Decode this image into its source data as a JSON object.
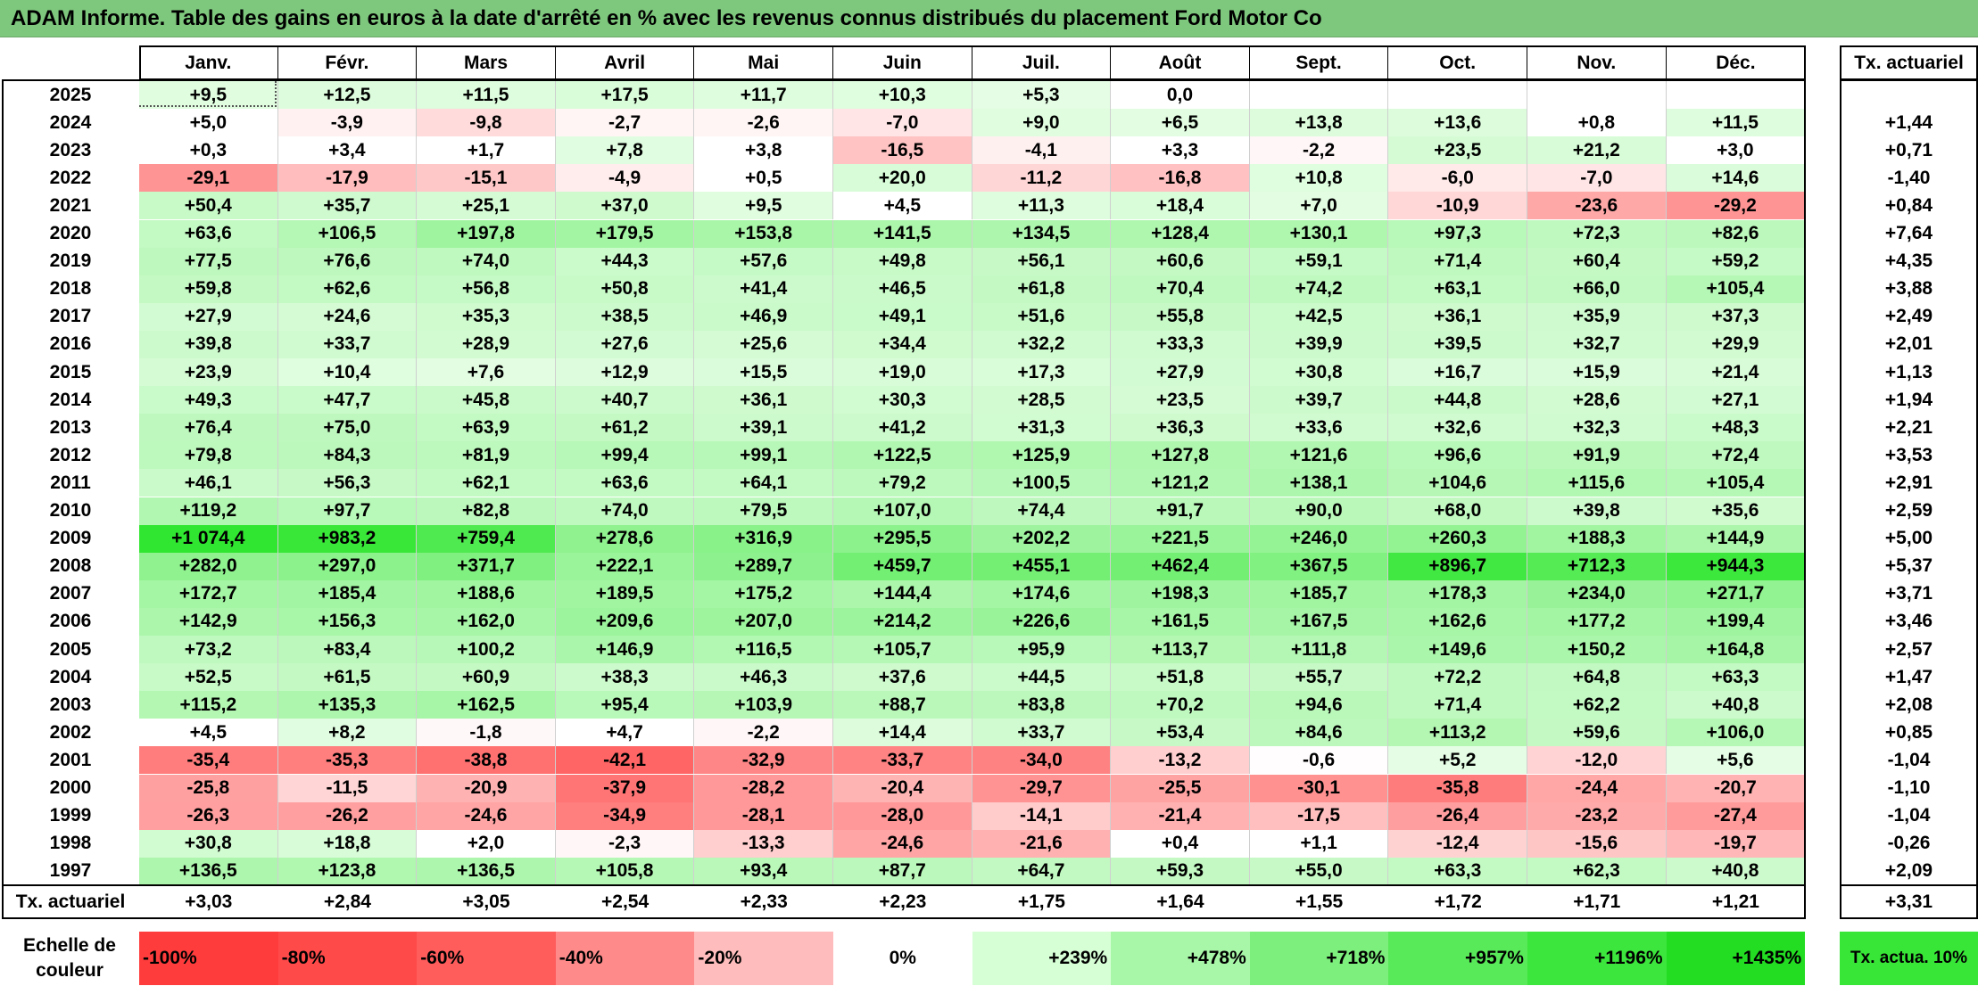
{
  "title": "ADAM Informe. Table des gains en euros à la date d'arrêté en % avec les revenus connus distribués du placement Ford Motor Co",
  "chart_data": {
    "type": "table",
    "columns": [
      "Janv.",
      "Févr.",
      "Mars",
      "Avril",
      "Mai",
      "Juin",
      "Juil.",
      "Août",
      "Sept.",
      "Oct.",
      "Nov.",
      "Déc."
    ],
    "rate_header": "Tx. actuariel",
    "rows": [
      {
        "year": "2025",
        "values": [
          9.5,
          12.5,
          11.5,
          17.5,
          11.7,
          10.3,
          5.3,
          0.0,
          null,
          null,
          null,
          null
        ],
        "rate": null
      },
      {
        "year": "2024",
        "values": [
          5.0,
          -3.9,
          -9.8,
          -2.7,
          -2.6,
          -7.0,
          9.0,
          6.5,
          13.8,
          13.6,
          0.8,
          11.5
        ],
        "rate": 1.44
      },
      {
        "year": "2023",
        "values": [
          0.3,
          3.4,
          1.7,
          7.8,
          3.8,
          -16.5,
          -4.1,
          3.3,
          -2.2,
          23.5,
          21.2,
          3.0
        ],
        "rate": 0.71
      },
      {
        "year": "2022",
        "values": [
          -29.1,
          -17.9,
          -15.1,
          -4.9,
          0.5,
          20.0,
          -11.2,
          -16.8,
          10.8,
          -6.0,
          -7.0,
          14.6
        ],
        "rate": -1.4
      },
      {
        "year": "2021",
        "values": [
          50.4,
          35.7,
          25.1,
          37.0,
          9.5,
          4.5,
          11.3,
          18.4,
          7.0,
          -10.9,
          -23.6,
          -29.2
        ],
        "rate": 0.84
      },
      {
        "year": "2020",
        "values": [
          63.6,
          106.5,
          197.8,
          179.5,
          153.8,
          141.5,
          134.5,
          128.4,
          130.1,
          97.3,
          72.3,
          82.6
        ],
        "rate": 7.64
      },
      {
        "year": "2019",
        "values": [
          77.5,
          76.6,
          74.0,
          44.3,
          57.6,
          49.8,
          56.1,
          60.6,
          59.1,
          71.4,
          60.4,
          59.2
        ],
        "rate": 4.35
      },
      {
        "year": "2018",
        "values": [
          59.8,
          62.6,
          56.8,
          50.8,
          41.4,
          46.5,
          61.8,
          70.4,
          74.2,
          63.1,
          66.0,
          105.4
        ],
        "rate": 3.88
      },
      {
        "year": "2017",
        "values": [
          27.9,
          24.6,
          35.3,
          38.5,
          46.9,
          49.1,
          51.6,
          55.8,
          42.5,
          36.1,
          35.9,
          37.3
        ],
        "rate": 2.49
      },
      {
        "year": "2016",
        "values": [
          39.8,
          33.7,
          28.9,
          27.6,
          25.6,
          34.4,
          32.2,
          33.3,
          39.9,
          39.5,
          32.7,
          29.9
        ],
        "rate": 2.01
      },
      {
        "year": "2015",
        "values": [
          23.9,
          10.4,
          7.6,
          12.9,
          15.5,
          19.0,
          17.3,
          27.9,
          30.8,
          16.7,
          15.9,
          21.4
        ],
        "rate": 1.13
      },
      {
        "year": "2014",
        "values": [
          49.3,
          47.7,
          45.8,
          40.7,
          36.1,
          30.3,
          28.5,
          23.5,
          39.7,
          44.8,
          28.6,
          27.1
        ],
        "rate": 1.94
      },
      {
        "year": "2013",
        "values": [
          76.4,
          75.0,
          63.9,
          61.2,
          39.1,
          41.2,
          31.3,
          36.3,
          33.6,
          32.6,
          32.3,
          48.3
        ],
        "rate": 2.21
      },
      {
        "year": "2012",
        "values": [
          79.8,
          84.3,
          81.9,
          99.4,
          99.1,
          122.5,
          125.9,
          127.8,
          121.6,
          96.6,
          91.9,
          72.4
        ],
        "rate": 3.53
      },
      {
        "year": "2011",
        "values": [
          46.1,
          56.3,
          62.1,
          63.6,
          64.1,
          79.2,
          100.5,
          121.2,
          138.1,
          104.6,
          115.6,
          105.4
        ],
        "rate": 2.91
      },
      {
        "year": "2010",
        "values": [
          119.2,
          97.7,
          82.8,
          74.0,
          79.5,
          107.0,
          74.4,
          91.7,
          90.0,
          68.0,
          39.8,
          35.6
        ],
        "rate": 2.59
      },
      {
        "year": "2009",
        "values": [
          1074.4,
          983.2,
          759.4,
          278.6,
          316.9,
          295.5,
          202.2,
          221.5,
          246.0,
          260.3,
          188.3,
          144.9
        ],
        "rate": 5.0
      },
      {
        "year": "2008",
        "values": [
          282.0,
          297.0,
          371.7,
          222.1,
          289.7,
          459.7,
          455.1,
          462.4,
          367.5,
          896.7,
          712.3,
          944.3
        ],
        "rate": 5.37
      },
      {
        "year": "2007",
        "values": [
          172.7,
          185.4,
          188.6,
          189.5,
          175.2,
          144.4,
          174.6,
          198.3,
          185.7,
          178.3,
          234.0,
          271.7
        ],
        "rate": 3.71
      },
      {
        "year": "2006",
        "values": [
          142.9,
          156.3,
          162.0,
          209.6,
          207.0,
          214.2,
          226.6,
          161.5,
          167.5,
          162.6,
          177.2,
          199.4
        ],
        "rate": 3.46
      },
      {
        "year": "2005",
        "values": [
          73.2,
          83.4,
          100.2,
          146.9,
          116.5,
          105.7,
          95.9,
          113.7,
          111.8,
          149.6,
          150.2,
          164.8
        ],
        "rate": 2.57
      },
      {
        "year": "2004",
        "values": [
          52.5,
          61.5,
          60.9,
          38.3,
          46.3,
          37.6,
          44.5,
          51.8,
          55.7,
          72.2,
          64.8,
          63.3
        ],
        "rate": 1.47
      },
      {
        "year": "2003",
        "values": [
          115.2,
          135.3,
          162.5,
          95.4,
          103.9,
          88.7,
          83.8,
          70.2,
          94.6,
          71.4,
          62.2,
          40.8
        ],
        "rate": 2.08
      },
      {
        "year": "2002",
        "values": [
          4.5,
          8.2,
          -1.8,
          4.7,
          -2.2,
          14.4,
          33.7,
          53.4,
          84.6,
          113.2,
          59.6,
          106.0
        ],
        "rate": 0.85
      },
      {
        "year": "2001",
        "values": [
          -35.4,
          -35.3,
          -38.8,
          -42.1,
          -32.9,
          -33.7,
          -34.0,
          -13.2,
          -0.6,
          5.2,
          -12.0,
          5.6
        ],
        "rate": -1.04
      },
      {
        "year": "2000",
        "values": [
          -25.8,
          -11.5,
          -20.9,
          -37.9,
          -28.2,
          -20.4,
          -29.7,
          -25.5,
          -30.1,
          -35.8,
          -24.4,
          -20.7
        ],
        "rate": -1.1
      },
      {
        "year": "1999",
        "values": [
          -26.3,
          -26.2,
          -24.6,
          -34.9,
          -28.1,
          -28.0,
          -14.1,
          -21.4,
          -17.5,
          -26.4,
          -23.2,
          -27.4
        ],
        "rate": -1.04
      },
      {
        "year": "1998",
        "values": [
          30.8,
          18.8,
          2.0,
          -2.3,
          -13.3,
          -24.6,
          -21.6,
          0.4,
          1.1,
          -12.4,
          -15.6,
          -19.7
        ],
        "rate": -0.26
      },
      {
        "year": "1997",
        "values": [
          136.5,
          123.8,
          136.5,
          105.8,
          93.4,
          87.7,
          64.7,
          59.3,
          55.0,
          63.3,
          62.3,
          40.8
        ],
        "rate": 2.09
      }
    ],
    "summary_row": {
      "label": "Tx. actuariel",
      "values": [
        3.03,
        2.84,
        3.05,
        2.54,
        2.33,
        2.23,
        1.75,
        1.64,
        1.55,
        1.72,
        1.71,
        1.21
      ],
      "rate": 3.31
    },
    "color_scale": {
      "label": "Echelle de couleur",
      "steps": [
        "-100%",
        "-80%",
        "-60%",
        "-40%",
        "-20%",
        "0%",
        "+239%",
        "+478%",
        "+718%",
        "+957%",
        "+1196%",
        "+1435%"
      ],
      "colors": [
        "#ff3c3c",
        "#ff4a4a",
        "#ff5c5c",
        "#ff8a8a",
        "#ffbcbc",
        "#ffffff",
        "#d6ffd6",
        "#a8f7a8",
        "#7cef7c",
        "#58ea58",
        "#3ce63c",
        "#22dd22"
      ],
      "rate_label": "Tx. actua. 10%",
      "rate_color": "#37e637"
    },
    "negative_color": "#ff5a5a",
    "positive_color": "#2ee62e"
  }
}
